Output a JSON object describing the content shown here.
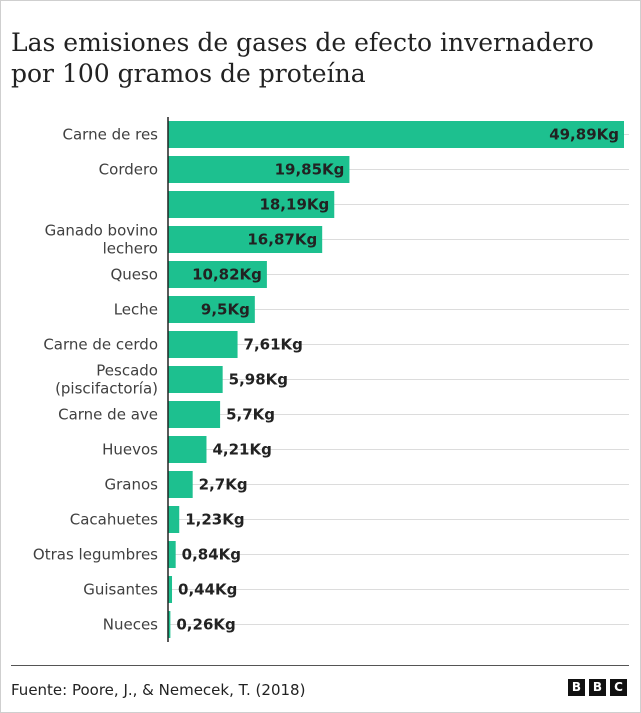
{
  "title": "Las emisiones de gases de efecto invernadero por 100 gramos de proteína",
  "source": "Fuente: Poore, J., & Nemecek, T. (2018)",
  "logo": [
    "B",
    "B",
    "C"
  ],
  "colors": {
    "bar": "#1dc08f",
    "axis": "#222222",
    "grid": "#dcdcdc",
    "text": "#222222",
    "label": "#404040"
  },
  "chart_data": {
    "type": "bar",
    "orientation": "horizontal",
    "categories": [
      [
        "Carne de res"
      ],
      [
        "Cordero"
      ],
      [
        ""
      ],
      [
        "Ganado bovino",
        "lechero"
      ],
      [
        "Queso"
      ],
      [
        "Leche"
      ],
      [
        "Carne de cerdo"
      ],
      [
        "Pescado",
        "(piscifactoría)"
      ],
      [
        "Carne de ave"
      ],
      [
        "Huevos"
      ],
      [
        "Granos"
      ],
      [
        "Cacahuetes"
      ],
      [
        "Otras legumbres"
      ],
      [
        "Guisantes"
      ],
      [
        "Nueces"
      ]
    ],
    "values": [
      49.89,
      19.85,
      18.19,
      16.87,
      10.82,
      9.5,
      7.61,
      5.98,
      5.7,
      4.21,
      2.7,
      1.23,
      0.84,
      0.44,
      0.26
    ],
    "value_labels": [
      "49,89Kg",
      "19,85Kg",
      "18,19Kg",
      "16,87Kg",
      "10,82Kg",
      "9,5Kg",
      "7,61Kg",
      "5,98Kg",
      "5,7Kg",
      "4,21Kg",
      "2,7Kg",
      "1,23Kg",
      "0,84Kg",
      "0,44Kg",
      "0,26Kg"
    ],
    "xlim": [
      0,
      49.89
    ],
    "grid": true,
    "legend": "none"
  }
}
